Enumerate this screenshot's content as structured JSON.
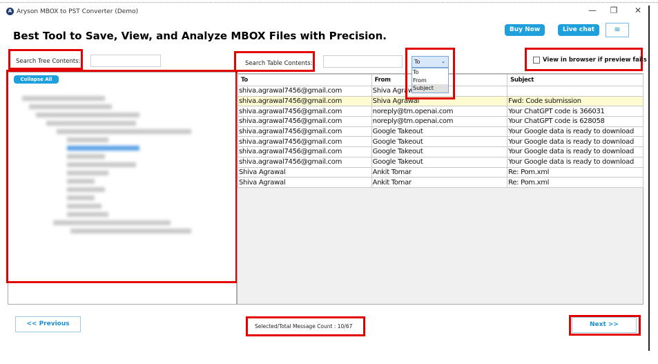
{
  "window": {
    "title": "Aryson MBOX to PST Converter (Demo)",
    "minimize": "—",
    "maximize": "❐",
    "close": "✕"
  },
  "header": {
    "heading": "Best Tool to Save, View, and Analyze MBOX Files with Precision.",
    "buy_now": "Buy Now",
    "live_chat": "Live chat",
    "menu_icon": "≡"
  },
  "tree": {
    "search_label": "Search Tree Contents:",
    "search_value": "",
    "collapse_all": "Collapse All"
  },
  "table_search": {
    "label": "Search Table Contents:",
    "value": "",
    "filter_selected": "To",
    "filter_options": [
      "To",
      "From",
      "Subject"
    ],
    "highlighted_option": "Subject"
  },
  "preview": {
    "checkbox_label": "View in browser if preview fails",
    "checked": false
  },
  "table": {
    "columns": [
      "To",
      "From",
      "Subject"
    ],
    "selected_row": 1,
    "rows": [
      [
        "shiva.agrawal7456@gmail.com",
        "Shiva Agrawal",
        ""
      ],
      [
        "shiva.agrawal7456@gmail.com",
        "Shiva Agrawal",
        "Fwd: Code submission"
      ],
      [
        "shiva.agrawal7456@gmail.com",
        "noreply@tm.openai.com",
        "Your ChatGPT code is 366031"
      ],
      [
        "shiva.agrawal7456@gmail.com",
        "noreply@tm.openai.com",
        "Your ChatGPT code is 628058"
      ],
      [
        "shiva.agrawal7456@gmail.com",
        "Google Takeout",
        "Your Google data is ready to download"
      ],
      [
        "shiva.agrawal7456@gmail.com",
        "Google Takeout",
        "Your Google data is ready to download"
      ],
      [
        "shiva.agrawal7456@gmail.com",
        "Google Takeout",
        "Your Google data is ready to download"
      ],
      [
        "shiva.agrawal7456@gmail.com",
        "Google Takeout",
        "Your Google data is ready to download"
      ],
      [
        "Shiva Agrawal",
        "Ankit Tomar",
        "Re: Pom.xml"
      ],
      [
        "Shiva Agrawal",
        "Ankit Tomar",
        "Re: Pom.xml"
      ]
    ]
  },
  "footer": {
    "previous": "<< Previous",
    "count": "Selected/Total Message Count : 10/67",
    "next": "Next >>"
  },
  "colors": {
    "accent": "#1ea0dd",
    "highlight_box": "#e30000",
    "selected_row": "#fdfbd0"
  }
}
